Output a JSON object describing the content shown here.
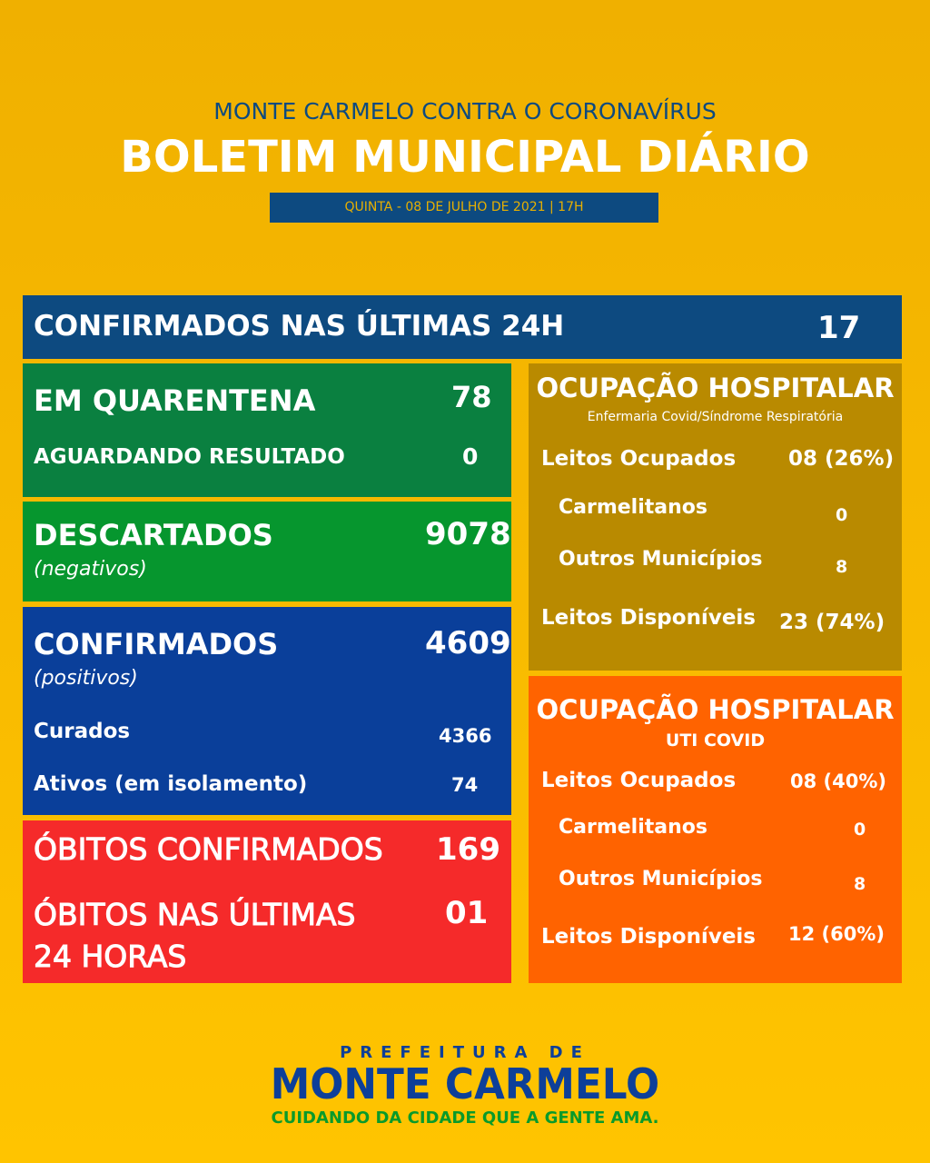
{
  "header": {
    "subtitle": "MONTE CARMELO CONTRA O CORONAVÍRUS",
    "title": "BOLETIM MUNICIPAL DIÁRIO",
    "date": "QUINTA - 08 DE JULHO DE 2021 | 17H"
  },
  "confirmed24h": {
    "label": "CONFIRMADOS NAS ÚLTIMAS 24H",
    "value": "17"
  },
  "quarantine": {
    "label": "EM QUARENTENA",
    "value": "78",
    "awaiting_label": "AGUARDANDO RESULTADO",
    "awaiting_value": "0"
  },
  "discarded": {
    "label": "DESCARTADOS",
    "sub": "(negativos)",
    "value": "9078"
  },
  "confirmed": {
    "label": "CONFIRMADOS",
    "sub": "(positivos)",
    "value": "4609",
    "cured_label": "Curados",
    "cured_value": "4366",
    "active_label": "Ativos (em isolamento)",
    "active_value": "74"
  },
  "deaths": {
    "label": "ÓBITOS CONFIRMADOS",
    "value": "169",
    "last24_label_1": "ÓBITOS NAS ÚLTIMAS",
    "last24_label_2": "24 HORAS",
    "last24_value": "01"
  },
  "ward": {
    "title": "OCUPAÇÃO HOSPITALAR",
    "subtitle": "Enfermaria Covid/Síndrome Respiratória",
    "occupied_label": "Leitos Ocupados",
    "occupied_value": "08 (26%)",
    "local_label": "Carmelitanos",
    "local_value": "0",
    "other_label": "Outros Municípios",
    "other_value": "8",
    "available_label": "Leitos Disponíveis",
    "available_value": "23 (74%)"
  },
  "icu": {
    "title": "OCUPAÇÃO HOSPITALAR",
    "subtitle": "UTI COVID",
    "occupied_label": "Leitos Ocupados",
    "occupied_value": "08 (40%)",
    "local_label": "Carmelitanos",
    "local_value": "0",
    "other_label": "Outros Municípios",
    "other_value": "8",
    "available_label": "Leitos Disponíveis",
    "available_value": "12 (60%)"
  },
  "footer": {
    "pre": "PREFEITURA DE",
    "name": "MONTE CARMELO",
    "slogan": "CUIDANDO DA CIDADE QUE A GENTE AMA."
  },
  "colors": {
    "navy": "#0d4a80",
    "dark_green": "#0a8040",
    "green": "#06962e",
    "blue": "#0a3f9a",
    "red": "#f52a2a",
    "gold": "#b98a00",
    "orange": "#ff6300"
  }
}
